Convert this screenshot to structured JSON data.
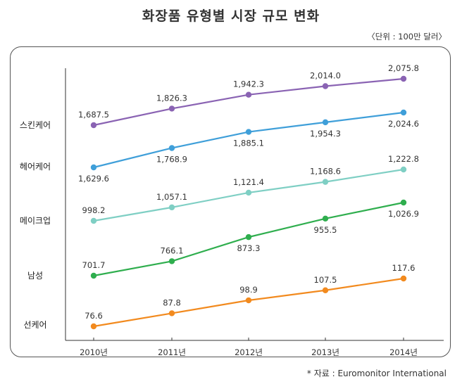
{
  "header": {
    "title": "화장품 유형별 시장 규모 변화",
    "unit": "〈단위 : 100만 달러〉"
  },
  "footer": {
    "source": "* 자료 : Euromonitor International"
  },
  "chart_data": {
    "type": "line",
    "title": "화장품 유형별 시장 규모 변화",
    "unit_label": "〈단위 : 100만 달러〉",
    "xlabel": "",
    "ylabel": "",
    "categories": [
      "2010년",
      "2011년",
      "2012년",
      "2013년",
      "2014년"
    ],
    "series": [
      {
        "name": "스킨케어",
        "color": "#8a63b3",
        "values": [
          1687.5,
          1826.3,
          1942.3,
          2014.0,
          2075.8
        ],
        "labels": [
          "1,687.5",
          "1,826.3",
          "1,942.3",
          "2,014.0",
          "2,075.8"
        ],
        "label_pos": [
          "above",
          "above",
          "above",
          "above",
          "above"
        ]
      },
      {
        "name": "헤어케어",
        "color": "#3f9fd9",
        "values": [
          1629.6,
          1768.9,
          1885.1,
          1954.3,
          2024.6
        ],
        "labels": [
          "1,629.6",
          "1,768.9",
          "1,885.1",
          "1,954.3",
          "2,024.6"
        ],
        "label_pos": [
          "below",
          "below",
          "below",
          "below",
          "below"
        ]
      },
      {
        "name": "메이크업",
        "color": "#7fcfc4",
        "values": [
          998.2,
          1057.1,
          1121.4,
          1168.6,
          1222.8
        ],
        "labels": [
          "998.2",
          "1,057.1",
          "1,121.4",
          "1,168.6",
          "1,222.8"
        ],
        "label_pos": [
          "above",
          "above",
          "above",
          "above",
          "above"
        ]
      },
      {
        "name": "남성",
        "color": "#2fae4e",
        "values": [
          701.7,
          766.1,
          873.3,
          955.5,
          1026.9
        ],
        "labels": [
          "701.7",
          "766.1",
          "873.3",
          "955.5",
          "1,026.9"
        ],
        "label_pos": [
          "above",
          "above",
          "below",
          "below",
          "below"
        ]
      },
      {
        "name": "선케어",
        "color": "#f28a1e",
        "values": [
          76.6,
          87.8,
          98.9,
          107.5,
          117.6
        ],
        "labels": [
          "76.6",
          "87.8",
          "98.9",
          "107.5",
          "117.6"
        ],
        "label_pos": [
          "above",
          "above",
          "above",
          "above",
          "above"
        ]
      }
    ],
    "legend": "left (category labels beside y-axis)",
    "grid": false
  }
}
